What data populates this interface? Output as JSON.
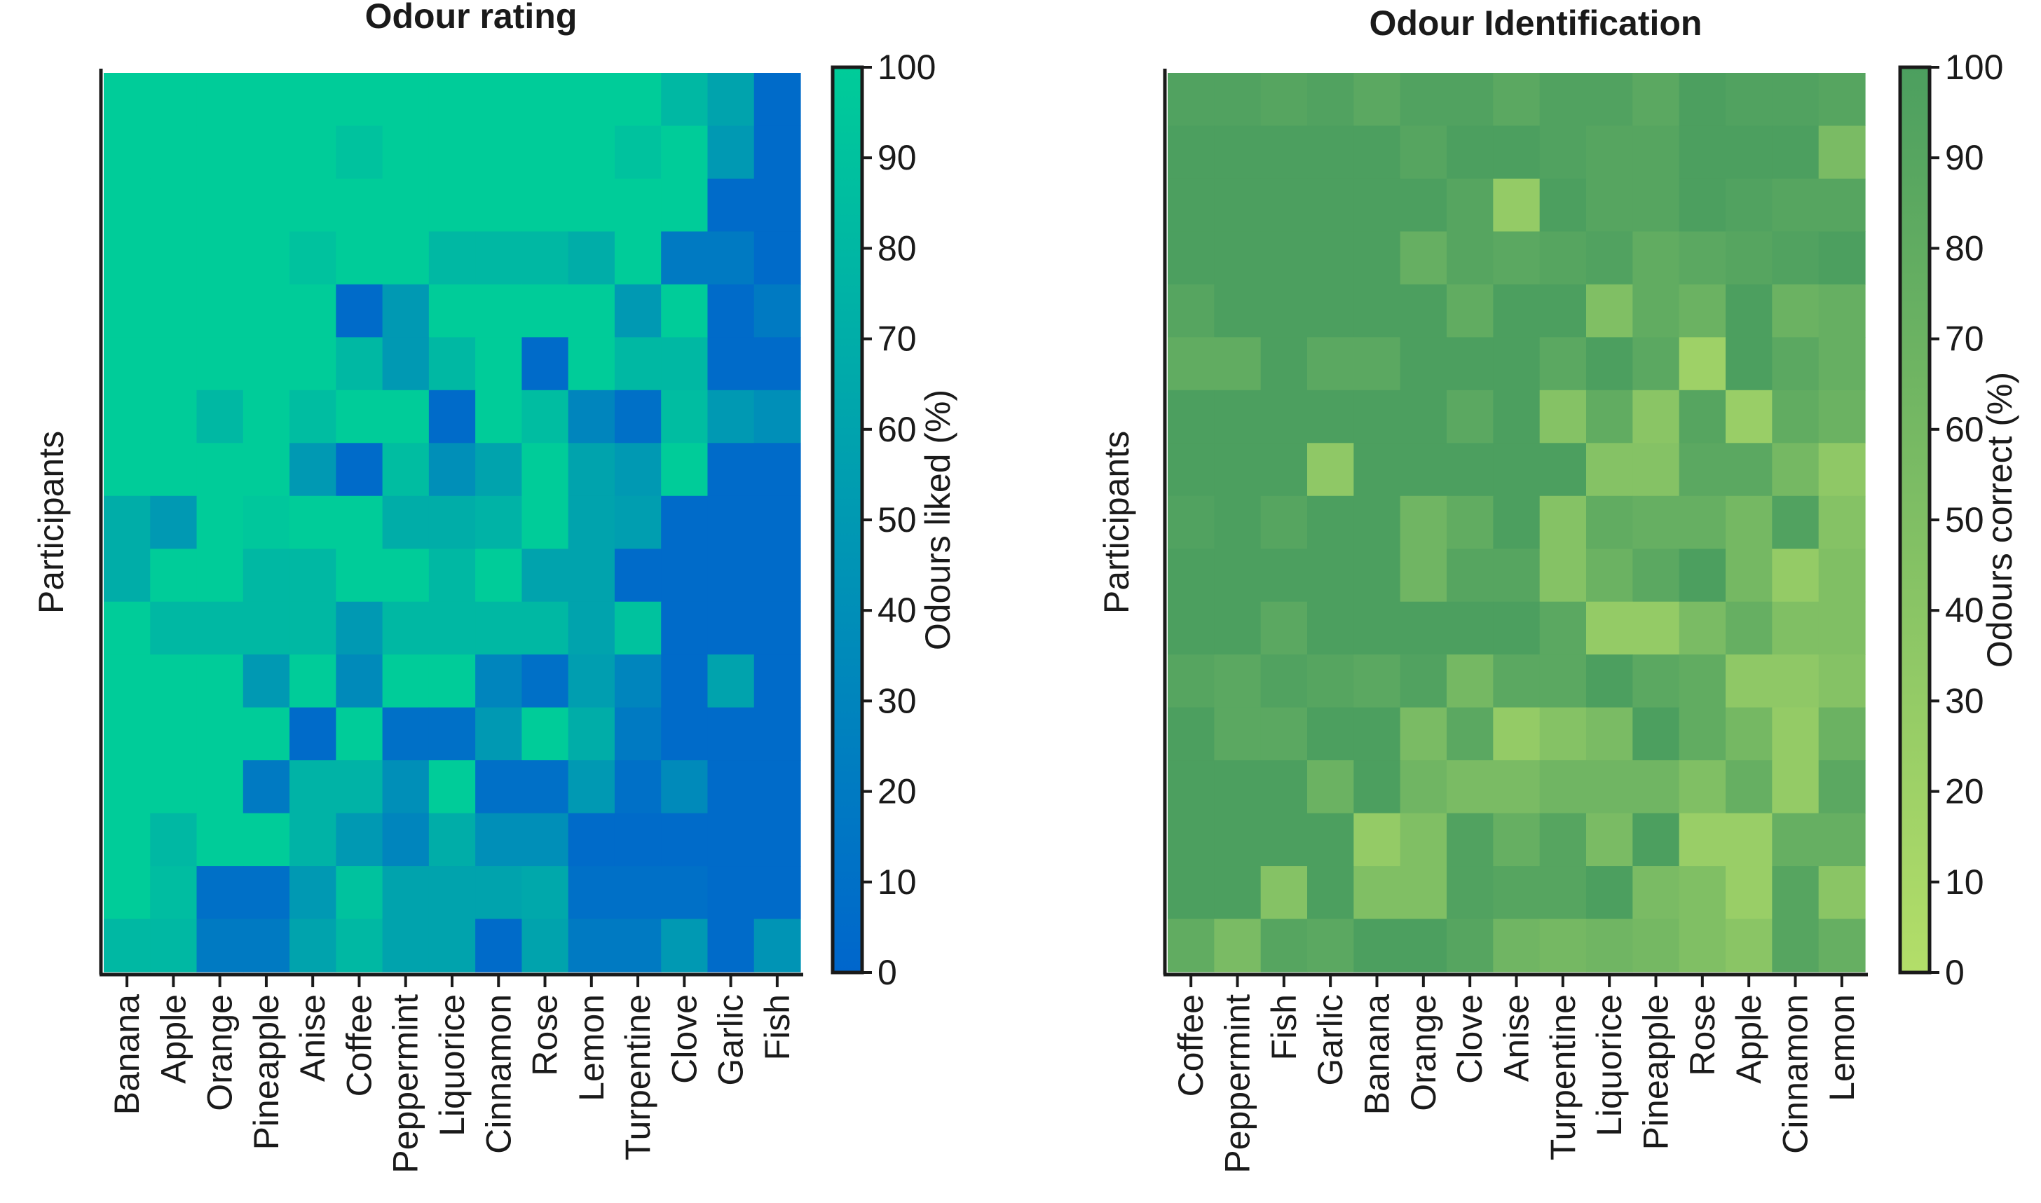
{
  "chart_data": [
    {
      "type": "heatmap",
      "title": "Odour rating",
      "xlabel": "",
      "ylabel": "Participants",
      "x_categories": [
        "Banana",
        "Apple",
        "Orange",
        "Pineapple",
        "Anise",
        "Coffee",
        "Peppermint",
        "Liquorice",
        "Cinnamon",
        "Rose",
        "Lemon",
        "Turpentine",
        "Clove",
        "Garlic",
        "Fish"
      ],
      "colorbar": {
        "label": "Odours liked (%)",
        "min": 0,
        "max": 100,
        "ticks": [
          "0",
          "10",
          "20",
          "30",
          "40",
          "50",
          "60",
          "70",
          "80",
          "90",
          "100"
        ],
        "low_color": "#0066cc",
        "high_color": "#00cc99"
      },
      "values": [
        [
          100,
          100,
          100,
          100,
          100,
          100,
          100,
          100,
          100,
          100,
          100,
          100,
          80,
          60,
          5
        ],
        [
          100,
          100,
          100,
          100,
          100,
          90,
          100,
          100,
          100,
          100,
          100,
          90,
          100,
          50,
          5
        ],
        [
          100,
          100,
          100,
          100,
          100,
          100,
          100,
          100,
          100,
          100,
          100,
          100,
          100,
          5,
          5
        ],
        [
          100,
          100,
          100,
          100,
          90,
          100,
          100,
          80,
          80,
          80,
          70,
          100,
          20,
          20,
          5
        ],
        [
          100,
          100,
          100,
          100,
          100,
          5,
          50,
          100,
          100,
          100,
          100,
          50,
          100,
          5,
          20
        ],
        [
          100,
          100,
          100,
          100,
          100,
          80,
          50,
          80,
          100,
          5,
          100,
          80,
          80,
          5,
          5
        ],
        [
          100,
          100,
          80,
          100,
          85,
          100,
          100,
          5,
          100,
          85,
          30,
          10,
          85,
          50,
          40
        ],
        [
          100,
          100,
          100,
          100,
          50,
          5,
          85,
          40,
          60,
          100,
          60,
          50,
          100,
          5,
          5
        ],
        [
          70,
          50,
          100,
          95,
          100,
          100,
          70,
          70,
          75,
          100,
          60,
          55,
          5,
          5,
          5
        ],
        [
          70,
          100,
          100,
          80,
          80,
          100,
          100,
          80,
          100,
          60,
          60,
          5,
          5,
          5,
          5
        ],
        [
          100,
          80,
          80,
          80,
          80,
          50,
          80,
          80,
          80,
          80,
          60,
          90,
          5,
          5,
          5
        ],
        [
          100,
          100,
          100,
          50,
          100,
          35,
          100,
          100,
          30,
          10,
          55,
          30,
          5,
          60,
          5
        ],
        [
          100,
          100,
          100,
          100,
          5,
          100,
          10,
          10,
          50,
          100,
          70,
          20,
          5,
          5,
          5
        ],
        [
          100,
          100,
          100,
          20,
          75,
          75,
          40,
          100,
          10,
          10,
          50,
          10,
          35,
          5,
          5
        ],
        [
          100,
          80,
          100,
          100,
          75,
          50,
          30,
          70,
          40,
          40,
          5,
          5,
          5,
          5,
          5
        ],
        [
          100,
          85,
          10,
          10,
          50,
          90,
          60,
          60,
          60,
          65,
          10,
          10,
          10,
          5,
          5
        ],
        [
          80,
          80,
          20,
          20,
          60,
          80,
          60,
          60,
          5,
          60,
          20,
          20,
          50,
          5,
          45
        ]
      ]
    },
    {
      "type": "heatmap",
      "title": "Odour Identification",
      "xlabel": "",
      "ylabel": "Participants",
      "x_categories": [
        "Coffee",
        "Peppermint",
        "Fish",
        "Garlic",
        "Banana",
        "Orange",
        "Clove",
        "Anise",
        "Turpentine",
        "Liquorice",
        "Pineapple",
        "Rose",
        "Apple",
        "Cinnamon",
        "Lemon"
      ],
      "colorbar": {
        "label": "Odours correct (%)",
        "min": 0,
        "max": 100,
        "ticks": [
          "0",
          "10",
          "20",
          "30",
          "40",
          "50",
          "60",
          "70",
          "80",
          "90",
          "100"
        ],
        "low_color": "#b3de69",
        "high_color": "#4c9f5f"
      },
      "values": [
        [
          95,
          95,
          90,
          95,
          85,
          95,
          95,
          85,
          95,
          95,
          85,
          100,
          95,
          95,
          90
        ],
        [
          100,
          100,
          100,
          100,
          100,
          90,
          100,
          100,
          95,
          90,
          90,
          100,
          100,
          100,
          55
        ],
        [
          100,
          100,
          100,
          100,
          100,
          100,
          90,
          30,
          100,
          90,
          90,
          100,
          95,
          90,
          90
        ],
        [
          100,
          100,
          100,
          100,
          100,
          75,
          90,
          85,
          90,
          95,
          80,
          85,
          90,
          95,
          100
        ],
        [
          90,
          100,
          100,
          100,
          100,
          100,
          80,
          100,
          100,
          50,
          80,
          70,
          100,
          70,
          75
        ],
        [
          80,
          80,
          100,
          85,
          85,
          100,
          100,
          100,
          85,
          100,
          85,
          20,
          100,
          85,
          75
        ],
        [
          100,
          100,
          100,
          100,
          100,
          100,
          85,
          100,
          45,
          80,
          40,
          90,
          25,
          80,
          70
        ],
        [
          100,
          100,
          100,
          35,
          100,
          100,
          100,
          100,
          100,
          45,
          45,
          85,
          85,
          60,
          35
        ],
        [
          95,
          100,
          90,
          100,
          100,
          65,
          80,
          100,
          45,
          80,
          75,
          75,
          60,
          95,
          45
        ],
        [
          100,
          100,
          100,
          100,
          100,
          65,
          90,
          90,
          45,
          70,
          85,
          100,
          60,
          30,
          50
        ],
        [
          100,
          100,
          85,
          100,
          100,
          100,
          100,
          100,
          85,
          30,
          30,
          55,
          75,
          50,
          50
        ],
        [
          90,
          85,
          95,
          90,
          85,
          95,
          60,
          85,
          85,
          100,
          85,
          80,
          35,
          35,
          45
        ],
        [
          100,
          85,
          85,
          100,
          100,
          55,
          85,
          30,
          45,
          55,
          100,
          80,
          60,
          30,
          70
        ],
        [
          100,
          100,
          100,
          70,
          100,
          65,
          55,
          55,
          65,
          65,
          65,
          50,
          75,
          30,
          85
        ],
        [
          100,
          100,
          100,
          100,
          30,
          50,
          95,
          75,
          90,
          55,
          100,
          25,
          25,
          75,
          75
        ],
        [
          100,
          100,
          45,
          100,
          50,
          50,
          95,
          90,
          90,
          100,
          55,
          50,
          25,
          90,
          40
        ],
        [
          80,
          55,
          90,
          85,
          100,
          100,
          90,
          65,
          60,
          65,
          60,
          50,
          40,
          90,
          75
        ]
      ]
    }
  ]
}
